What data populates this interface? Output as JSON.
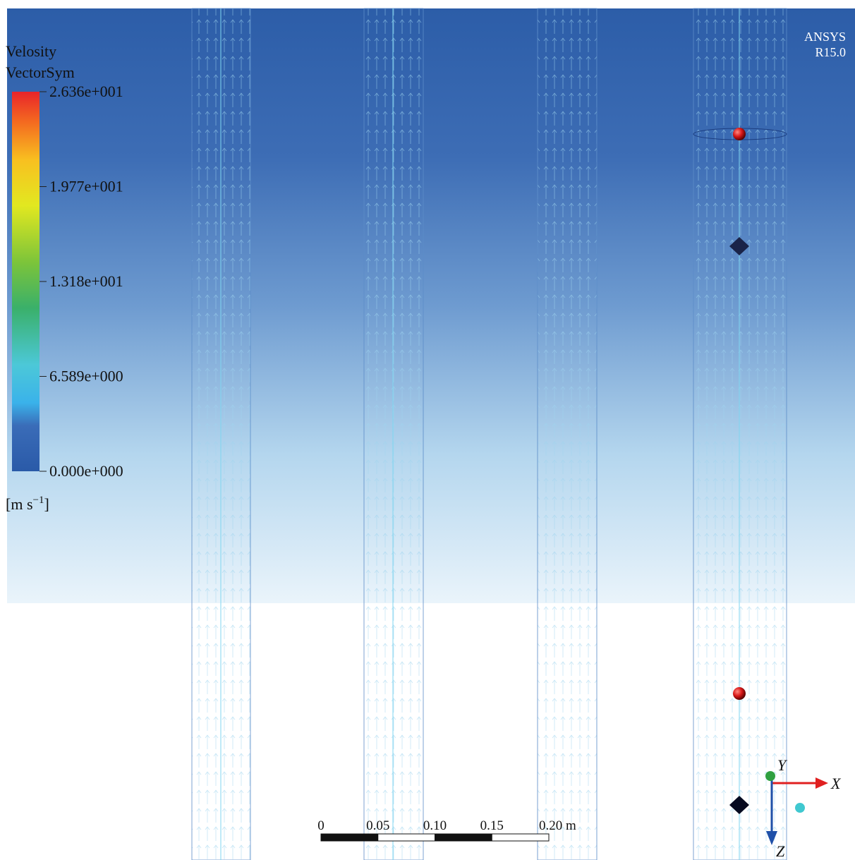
{
  "legend": {
    "title": [
      "Velosity",
      "VectorSym"
    ],
    "labels": [
      "2.636e+001",
      "1.977e+001",
      "1.318e+001",
      "6.589e+000",
      "0.000e+000"
    ],
    "unit_text": "[m s",
    "unit_exponent": "−1",
    "unit_close": "]"
  },
  "branding": [
    "ANSYS",
    "R15.0"
  ],
  "scale_bar": [
    "0",
    "0.05",
    "0.10",
    "0.15",
    "0.20 m"
  ],
  "triad": {
    "x": "X",
    "y": "Y",
    "z": "Z"
  }
}
